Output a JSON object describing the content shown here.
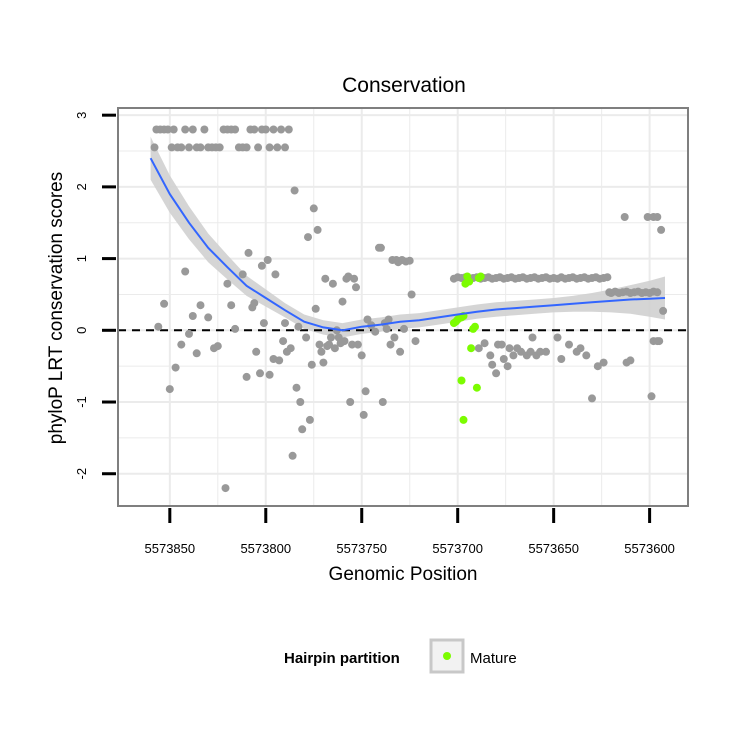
{
  "chart_data": {
    "type": "scatter",
    "title": "Conservation",
    "xlabel": "Genomic Position",
    "ylabel": "phyloP LRT conservation scores",
    "x_reversed": true,
    "xlim": [
      5573877,
      5573580
    ],
    "ylim": [
      -2.45,
      3.1
    ],
    "x_ticks": [
      5573850,
      5573800,
      5573750,
      5573700,
      5573650,
      5573600
    ],
    "x_tick_labels": [
      "5573850",
      "5573800",
      "5573750",
      "5573700",
      "5573650",
      "5573600"
    ],
    "y_ticks": [
      -2,
      -1,
      0,
      1,
      2,
      3
    ],
    "y_tick_labels": [
      "-2",
      "-1",
      "0",
      "1",
      "2",
      "3"
    ],
    "reference_line": {
      "y": 0,
      "style": "dashed"
    },
    "legend": {
      "title": "Hairpin partition",
      "entries": [
        "Mature"
      ],
      "position": "bottom"
    },
    "colors": {
      "other": "#999999",
      "mature": "#7cfc00",
      "smooth": "#3366ff",
      "band": "#d0d0d0",
      "grid": "#ebebeb"
    },
    "series": [
      {
        "name": "Other",
        "points": [
          [
            5573858,
            2.55
          ],
          [
            5573857,
            2.8
          ],
          [
            5573855,
            2.8
          ],
          [
            5573853,
            2.8
          ],
          [
            5573851,
            2.8
          ],
          [
            5573849,
            2.55
          ],
          [
            5573848,
            2.8
          ],
          [
            5573846,
            2.55
          ],
          [
            5573844,
            2.55
          ],
          [
            5573842,
            2.8
          ],
          [
            5573840,
            2.55
          ],
          [
            5573838,
            2.8
          ],
          [
            5573836,
            2.55
          ],
          [
            5573834,
            2.55
          ],
          [
            5573832,
            2.8
          ],
          [
            5573830,
            2.55
          ],
          [
            5573828,
            2.55
          ],
          [
            5573826,
            2.55
          ],
          [
            5573824,
            2.55
          ],
          [
            5573822,
            2.8
          ],
          [
            5573820,
            2.8
          ],
          [
            5573818,
            2.8
          ],
          [
            5573816,
            2.8
          ],
          [
            5573814,
            2.55
          ],
          [
            5573812,
            2.55
          ],
          [
            5573810,
            2.55
          ],
          [
            5573808,
            2.8
          ],
          [
            5573806,
            2.8
          ],
          [
            5573804,
            2.55
          ],
          [
            5573802,
            2.8
          ],
          [
            5573800,
            2.8
          ],
          [
            5573798,
            2.55
          ],
          [
            5573796,
            2.8
          ],
          [
            5573794,
            2.55
          ],
          [
            5573792,
            2.8
          ],
          [
            5573790,
            2.55
          ],
          [
            5573788,
            2.8
          ],
          [
            5573856,
            0.05
          ],
          [
            5573853,
            0.37
          ],
          [
            5573850,
            -0.82
          ],
          [
            5573847,
            -0.52
          ],
          [
            5573844,
            -0.2
          ],
          [
            5573842,
            0.82
          ],
          [
            5573840,
            -0.05
          ],
          [
            5573838,
            0.2
          ],
          [
            5573836,
            -0.32
          ],
          [
            5573834,
            0.35
          ],
          [
            5573830,
            0.18
          ],
          [
            5573827,
            -0.25
          ],
          [
            5573825,
            -0.22
          ],
          [
            5573821,
            -2.2
          ],
          [
            5573820,
            0.65
          ],
          [
            5573818,
            0.35
          ],
          [
            5573816,
            0.02
          ],
          [
            5573812,
            0.78
          ],
          [
            5573810,
            -0.65
          ],
          [
            5573809,
            1.08
          ],
          [
            5573807,
            0.32
          ],
          [
            5573806,
            0.38
          ],
          [
            5573805,
            -0.3
          ],
          [
            5573803,
            -0.6
          ],
          [
            5573802,
            0.9
          ],
          [
            5573801,
            0.1
          ],
          [
            5573799,
            0.98
          ],
          [
            5573798,
            -0.62
          ],
          [
            5573796,
            -0.4
          ],
          [
            5573795,
            0.78
          ],
          [
            5573793,
            -0.42
          ],
          [
            5573791,
            -0.15
          ],
          [
            5573790,
            0.1
          ],
          [
            5573789,
            -0.3
          ],
          [
            5573787,
            -0.25
          ],
          [
            5573786,
            -1.75
          ],
          [
            5573785,
            1.95
          ],
          [
            5573784,
            -0.8
          ],
          [
            5573783,
            0.05
          ],
          [
            5573782,
            -1.0
          ],
          [
            5573781,
            -1.38
          ],
          [
            5573779,
            -0.1
          ],
          [
            5573778,
            1.3
          ],
          [
            5573777,
            -1.25
          ],
          [
            5573776,
            -0.48
          ],
          [
            5573775,
            1.7
          ],
          [
            5573774,
            0.3
          ],
          [
            5573773,
            1.4
          ],
          [
            5573772,
            -0.2
          ],
          [
            5573771,
            -0.3
          ],
          [
            5573770,
            -0.45
          ],
          [
            5573769,
            0.72
          ],
          [
            5573768,
            -0.22
          ],
          [
            5573767,
            -0.2
          ],
          [
            5573766,
            -0.1
          ],
          [
            5573765,
            0.65
          ],
          [
            5573764,
            -0.25
          ],
          [
            5573763,
            0.0
          ],
          [
            5573762,
            -0.1
          ],
          [
            5573761,
            -0.18
          ],
          [
            5573760,
            0.4
          ],
          [
            5573759,
            -0.15
          ],
          [
            5573758,
            0.72
          ],
          [
            5573757,
            0.75
          ],
          [
            5573756,
            -1.0
          ],
          [
            5573755,
            -0.2
          ],
          [
            5573754,
            0.72
          ],
          [
            5573753,
            0.6
          ],
          [
            5573752,
            -0.2
          ],
          [
            5573750,
            -0.35
          ],
          [
            5573749,
            -1.18
          ],
          [
            5573748,
            -0.85
          ],
          [
            5573747,
            0.15
          ],
          [
            5573745,
            0.07
          ],
          [
            5573743,
            -0.02
          ],
          [
            5573741,
            1.15
          ],
          [
            5573740,
            1.15
          ],
          [
            5573739,
            -1.0
          ],
          [
            5573738,
            0.1
          ],
          [
            5573737,
            0.02
          ],
          [
            5573736,
            0.15
          ],
          [
            5573735,
            -0.2
          ],
          [
            5573734,
            0.98
          ],
          [
            5573733,
            -0.1
          ],
          [
            5573732,
            0.98
          ],
          [
            5573731,
            0.95
          ],
          [
            5573730,
            -0.3
          ],
          [
            5573729,
            0.98
          ],
          [
            5573728,
            0.02
          ],
          [
            5573727,
            0.96
          ],
          [
            5573725,
            0.97
          ],
          [
            5573724,
            0.5
          ],
          [
            5573722,
            -0.15
          ],
          [
            5573702,
            0.72
          ],
          [
            5573700,
            0.74
          ],
          [
            5573698,
            0.73
          ],
          [
            5573696,
            0.74
          ],
          [
            5573694,
            0.72
          ],
          [
            5573692,
            0.73
          ],
          [
            5573690,
            0.74
          ],
          [
            5573688,
            0.72
          ],
          [
            5573686,
            0.73
          ],
          [
            5573684,
            0.74
          ],
          [
            5573682,
            0.72
          ],
          [
            5573680,
            0.73
          ],
          [
            5573678,
            0.74
          ],
          [
            5573676,
            0.72
          ],
          [
            5573674,
            0.73
          ],
          [
            5573672,
            0.74
          ],
          [
            5573670,
            0.72
          ],
          [
            5573668,
            0.73
          ],
          [
            5573666,
            0.74
          ],
          [
            5573664,
            0.72
          ],
          [
            5573662,
            0.73
          ],
          [
            5573660,
            0.74
          ],
          [
            5573658,
            0.72
          ],
          [
            5573656,
            0.73
          ],
          [
            5573654,
            0.74
          ],
          [
            5573652,
            0.72
          ],
          [
            5573650,
            0.73
          ],
          [
            5573648,
            0.72
          ],
          [
            5573646,
            0.74
          ],
          [
            5573644,
            0.72
          ],
          [
            5573642,
            0.73
          ],
          [
            5573640,
            0.74
          ],
          [
            5573638,
            0.72
          ],
          [
            5573636,
            0.73
          ],
          [
            5573634,
            0.74
          ],
          [
            5573632,
            0.72
          ],
          [
            5573630,
            0.73
          ],
          [
            5573628,
            0.74
          ],
          [
            5573626,
            0.72
          ],
          [
            5573624,
            0.73
          ],
          [
            5573622,
            0.74
          ],
          [
            5573689,
            -0.25
          ],
          [
            5573686,
            -0.18
          ],
          [
            5573683,
            -0.35
          ],
          [
            5573682,
            -0.48
          ],
          [
            5573680,
            -0.6
          ],
          [
            5573679,
            -0.2
          ],
          [
            5573677,
            -0.2
          ],
          [
            5573676,
            -0.4
          ],
          [
            5573674,
            -0.5
          ],
          [
            5573673,
            -0.25
          ],
          [
            5573671,
            -0.35
          ],
          [
            5573669,
            -0.25
          ],
          [
            5573667,
            -0.3
          ],
          [
            5573664,
            -0.35
          ],
          [
            5573662,
            -0.3
          ],
          [
            5573661,
            -0.1
          ],
          [
            5573659,
            -0.35
          ],
          [
            5573657,
            -0.3
          ],
          [
            5573654,
            -0.3
          ],
          [
            5573648,
            -0.1
          ],
          [
            5573646,
            -0.4
          ],
          [
            5573642,
            -0.2
          ],
          [
            5573638,
            -0.3
          ],
          [
            5573636,
            -0.25
          ],
          [
            5573633,
            -0.35
          ],
          [
            5573630,
            -0.95
          ],
          [
            5573627,
            -0.5
          ],
          [
            5573624,
            -0.45
          ],
          [
            5573621,
            0.53
          ],
          [
            5573620,
            0.52
          ],
          [
            5573618,
            0.54
          ],
          [
            5573616,
            0.52
          ],
          [
            5573614,
            0.53
          ],
          [
            5573612,
            0.54
          ],
          [
            5573610,
            0.52
          ],
          [
            5573608,
            0.53
          ],
          [
            5573606,
            0.54
          ],
          [
            5573604,
            0.52
          ],
          [
            5573602,
            0.53
          ],
          [
            5573600,
            0.52
          ],
          [
            5573598,
            0.54
          ],
          [
            5573596,
            0.53
          ],
          [
            5573613,
            1.58
          ],
          [
            5573601,
            1.58
          ],
          [
            5573598,
            1.58
          ],
          [
            5573596,
            1.58
          ],
          [
            5573594,
            1.4
          ],
          [
            5573593,
            0.27
          ],
          [
            5573599,
            -0.92
          ],
          [
            5573598,
            -0.15
          ],
          [
            5573596,
            -0.15
          ],
          [
            5573595,
            -0.15
          ],
          [
            5573612,
            -0.45
          ],
          [
            5573610,
            -0.42
          ]
        ]
      },
      {
        "name": "Mature",
        "points": [
          [
            5573702,
            0.1
          ],
          [
            5573701,
            0.12
          ],
          [
            5573700,
            0.15
          ],
          [
            5573699,
            0.17
          ],
          [
            5573698,
            0.18
          ],
          [
            5573697,
            0.2
          ],
          [
            5573696,
            0.65
          ],
          [
            5573695,
            0.75
          ],
          [
            5573694,
            0.68
          ],
          [
            5573693,
            -0.25
          ],
          [
            5573692,
            0.02
          ],
          [
            5573691,
            0.05
          ],
          [
            5573690,
            -0.8
          ],
          [
            5573689,
            0.73
          ],
          [
            5573688,
            0.75
          ],
          [
            5573698,
            -0.7
          ],
          [
            5573697,
            -1.25
          ]
        ]
      },
      {
        "name": "Smooth",
        "points": [
          [
            5573860,
            2.4
          ],
          [
            5573850,
            1.9
          ],
          [
            5573840,
            1.5
          ],
          [
            5573830,
            1.15
          ],
          [
            5573820,
            0.88
          ],
          [
            5573810,
            0.62
          ],
          [
            5573800,
            0.45
          ],
          [
            5573790,
            0.28
          ],
          [
            5573780,
            0.12
          ],
          [
            5573770,
            0.04
          ],
          [
            5573760,
            0.0
          ],
          [
            5573750,
            0.05
          ],
          [
            5573740,
            0.08
          ],
          [
            5573730,
            0.12
          ],
          [
            5573720,
            0.14
          ],
          [
            5573710,
            0.18
          ],
          [
            5573700,
            0.22
          ],
          [
            5573690,
            0.26
          ],
          [
            5573680,
            0.29
          ],
          [
            5573670,
            0.31
          ],
          [
            5573660,
            0.33
          ],
          [
            5573650,
            0.35
          ],
          [
            5573640,
            0.37
          ],
          [
            5573630,
            0.39
          ],
          [
            5573620,
            0.41
          ],
          [
            5573610,
            0.43
          ],
          [
            5573600,
            0.44
          ],
          [
            5573592,
            0.45
          ]
        ],
        "band_half_width": [
          0.3,
          0.26,
          0.23,
          0.2,
          0.17,
          0.14,
          0.12,
          0.1,
          0.1,
          0.1,
          0.1,
          0.1,
          0.1,
          0.1,
          0.1,
          0.1,
          0.1,
          0.1,
          0.1,
          0.1,
          0.1,
          0.1,
          0.11,
          0.13,
          0.16,
          0.2,
          0.25,
          0.3
        ]
      }
    ]
  }
}
